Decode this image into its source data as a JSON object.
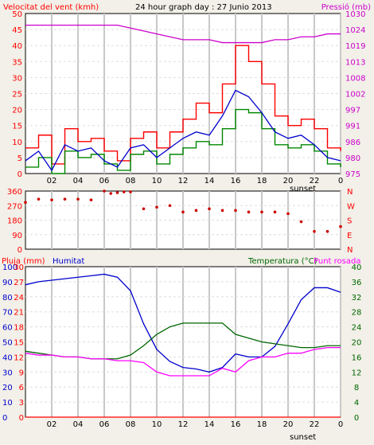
{
  "colors": {
    "background": "#f2f0e8",
    "plot_bg": "#ffffff",
    "wind_red": "#ff0000",
    "wind_blue": "#0000cc",
    "wind_green": "#008800",
    "pressure": "#cc00cc",
    "humidity": "#0000cc",
    "temperature": "#006600",
    "dewpoint": "#ff00ff",
    "rain": "#ff0000",
    "direction": "#cc0000",
    "grid_major": "#c8c8c8",
    "grid_minor": "#dddddd"
  },
  "header": {
    "wind_label": "Velocitat del vent (kmh)",
    "title": "24 hour graph day : 27 Junio 2013",
    "pressure_label": "Pressió (mb)"
  },
  "lower_header": {
    "rain_label": "Pluja (mm)",
    "humidity_label": "Humitat",
    "temp_label": "Temperatura (°C)",
    "dew_label": "Punt rosada"
  },
  "xaxis": {
    "ticks": [
      "02",
      "04",
      "06",
      "08",
      "10",
      "12",
      "14",
      "16",
      "18",
      "20",
      "22",
      "0"
    ],
    "sunset_label": "sunset"
  },
  "chart_data": [
    {
      "type": "line",
      "title": "24 hour graph day : 27 Junio 2013",
      "ylabel": "Velocitat del vent (kmh)",
      "ylim": [
        0,
        50
      ],
      "y2label": "Pressió (mb)",
      "y2lim": [
        975,
        1030
      ],
      "yticks": [
        "0",
        "5",
        "10",
        "15",
        "20",
        "25",
        "30",
        "35",
        "40",
        "45",
        "50"
      ],
      "y2ticks": [
        "975",
        "980",
        "986",
        "991",
        "997",
        "1002",
        "1008",
        "1013",
        "1019",
        "1024",
        "1030"
      ],
      "x": [
        0,
        1,
        2,
        3,
        4,
        5,
        6,
        7,
        8,
        9,
        10,
        11,
        12,
        13,
        14,
        15,
        16,
        17,
        18,
        19,
        20,
        21,
        22,
        23,
        24
      ],
      "series": [
        {
          "values": [
            8,
            12,
            3,
            14,
            10,
            11,
            7,
            4,
            11,
            13,
            8,
            13,
            17,
            22,
            19,
            28,
            40,
            35,
            28,
            18,
            15,
            17,
            14,
            8,
            7
          ]
        },
        {
          "values": [
            4,
            7,
            1,
            9,
            7,
            8,
            4,
            2,
            8,
            9,
            5,
            8,
            11,
            13,
            12,
            18,
            26,
            24,
            19,
            13,
            11,
            12,
            9,
            5,
            4
          ]
        },
        {
          "values": [
            2,
            5,
            0,
            7,
            5,
            6,
            3,
            1,
            6,
            7,
            3,
            6,
            8,
            10,
            9,
            14,
            20,
            19,
            14,
            9,
            8,
            9,
            7,
            3,
            2
          ]
        },
        {
          "values": [
            1026,
            1026,
            1026,
            1026,
            1026,
            1026,
            1026,
            1026,
            1025,
            1024,
            1023,
            1022,
            1021,
            1021,
            1021,
            1020,
            1020,
            1020,
            1020,
            1021,
            1021,
            1022,
            1022,
            1023,
            1023
          ]
        }
      ]
    },
    {
      "type": "scatter",
      "yticks": [
        "360",
        "270",
        "180",
        "90",
        "0"
      ],
      "y2ticks": [
        "N",
        "W",
        "S",
        "E",
        "N"
      ],
      "ylim": [
        0,
        360
      ],
      "x": [
        0,
        1,
        2,
        3,
        4,
        5,
        6,
        6.5,
        7,
        7.5,
        8,
        9,
        10,
        11,
        12,
        13,
        14,
        15,
        16,
        17,
        18,
        19,
        20,
        21,
        22,
        23,
        24
      ],
      "values": [
        290,
        310,
        305,
        310,
        310,
        305,
        360,
        345,
        350,
        355,
        355,
        250,
        260,
        270,
        230,
        240,
        250,
        240,
        240,
        230,
        230,
        230,
        220,
        170,
        110,
        110,
        140
      ]
    },
    {
      "type": "line",
      "ylim": [
        0,
        100
      ],
      "yticks": [
        "0",
        "10",
        "20",
        "30",
        "40",
        "50",
        "60",
        "70",
        "80",
        "90",
        "100"
      ],
      "y2lim": [
        0,
        40
      ],
      "y2ticks": [
        "0",
        "4",
        "8",
        "12",
        "16",
        "20",
        "24",
        "28",
        "32",
        "36",
        "40"
      ],
      "left_inner_ticks": [
        "0",
        "3",
        "6",
        "9",
        "12",
        "15",
        "18",
        "21",
        "24",
        "27",
        "30"
      ],
      "x": [
        0,
        1,
        2,
        3,
        4,
        5,
        6,
        7,
        8,
        9,
        10,
        11,
        12,
        13,
        14,
        15,
        16,
        17,
        18,
        19,
        20,
        21,
        22,
        23,
        24
      ],
      "series": [
        {
          "values": [
            88,
            90,
            91,
            92,
            93,
            94,
            95,
            93,
            84,
            62,
            45,
            37,
            33,
            32,
            30,
            33,
            42,
            40,
            40,
            47,
            62,
            78,
            86,
            86,
            83
          ]
        },
        {
          "values": [
            17.5,
            17,
            16.5,
            16,
            16,
            15.5,
            15.5,
            15.5,
            16.5,
            19,
            22,
            24,
            25,
            25,
            25,
            25,
            22,
            21,
            20,
            19.5,
            19,
            18.5,
            18.5,
            19,
            19
          ]
        },
        {
          "values": [
            17,
            16.5,
            16.5,
            16,
            16,
            15.5,
            15.5,
            15,
            15,
            14.5,
            12,
            11,
            11,
            11,
            11,
            13,
            12,
            15,
            16,
            16,
            17,
            17,
            18,
            18.5,
            18.5
          ]
        },
        {
          "values": [
            0,
            0,
            0,
            0,
            0,
            0,
            0,
            0,
            0,
            0,
            0,
            0,
            0,
            0,
            0,
            0,
            0,
            0,
            0,
            0,
            0,
            0,
            0,
            0,
            0
          ]
        }
      ]
    }
  ]
}
